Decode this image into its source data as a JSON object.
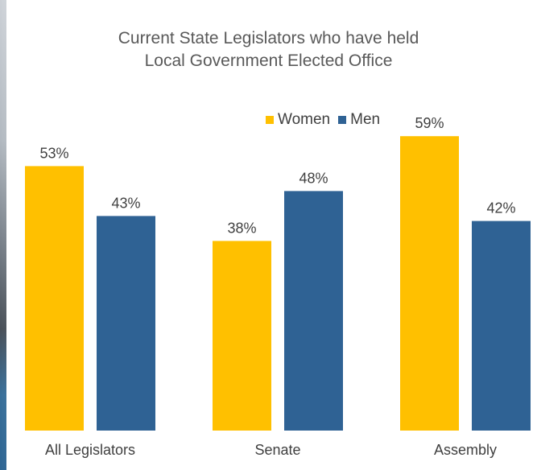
{
  "chart_data": {
    "type": "bar",
    "title": "Current State Legislators who have held Local Government Elected Office",
    "title_lines": [
      "Current State Legislators who have held",
      "Local Government Elected Office"
    ],
    "categories": [
      "All Legislators",
      "Senate",
      "Assembly"
    ],
    "series": [
      {
        "name": "Women",
        "values": [
          53,
          38,
          59
        ],
        "color": "#FFC000"
      },
      {
        "name": "Men",
        "values": [
          43,
          48,
          42
        ],
        "color": "#2F6294"
      }
    ],
    "value_suffix": "%",
    "ylim": [
      0,
      70
    ],
    "grid": false,
    "legend_position": "top-right"
  }
}
